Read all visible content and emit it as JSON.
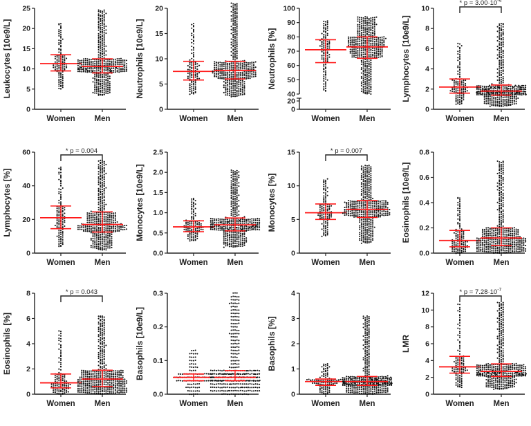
{
  "chart_data": [
    {
      "type": "scatter",
      "ylabel": "Leukocytes [10e9/L]",
      "ylim": [
        0,
        25
      ],
      "ticks": [
        0,
        5,
        10,
        15,
        20,
        25
      ],
      "categories": [
        "Women",
        "Men"
      ],
      "series": [
        {
          "name": "Women",
          "n": 120,
          "median": 11.3,
          "q1": 9.5,
          "q3": 13.5,
          "min": 5,
          "max": 21.2
        },
        {
          "name": "Men",
          "n": 450,
          "median": 10.6,
          "q1": 9,
          "q3": 12.5,
          "min": 3.5,
          "max": 24.5
        }
      ],
      "pvalue": null
    },
    {
      "type": "scatter",
      "ylabel": "Neutrophils [10e9/L]",
      "ylim": [
        0,
        20
      ],
      "ticks": [
        0,
        5,
        10,
        15,
        20
      ],
      "categories": [
        "Women",
        "Men"
      ],
      "series": [
        {
          "name": "Women",
          "n": 120,
          "median": 7.5,
          "q1": 5.8,
          "q3": 9.5,
          "min": 3,
          "max": 17
        },
        {
          "name": "Men",
          "n": 450,
          "median": 7.7,
          "q1": 6,
          "q3": 9.5,
          "min": 2.5,
          "max": 21
        }
      ],
      "pvalue": null
    },
    {
      "type": "scatter",
      "ylabel": "Neutrophils [%]",
      "ylim": [
        40,
        100
      ],
      "ticks": [
        40,
        50,
        60,
        70,
        80,
        90,
        100
      ],
      "broken_ticks": [
        0,
        20
      ],
      "categories": [
        "Women",
        "Men"
      ],
      "series": [
        {
          "name": "Women",
          "n": 120,
          "median": 71,
          "q1": 62,
          "q3": 78,
          "min": 42,
          "max": 91
        },
        {
          "name": "Men",
          "n": 450,
          "median": 73,
          "q1": 65,
          "q3": 80,
          "min": 40,
          "max": 94
        }
      ],
      "pvalue": null
    },
    {
      "type": "scatter",
      "ylabel": "Lymphocytes [10e9/L]",
      "ylim": [
        0,
        10
      ],
      "ticks": [
        0,
        2,
        4,
        6,
        8,
        10
      ],
      "categories": [
        "Women",
        "Men"
      ],
      "series": [
        {
          "name": "Women",
          "n": 120,
          "median": 2.2,
          "q1": 1.6,
          "q3": 3.0,
          "min": 0.5,
          "max": 6.5
        },
        {
          "name": "Men",
          "n": 450,
          "median": 1.8,
          "q1": 1.4,
          "q3": 2.4,
          "min": 0.3,
          "max": 8.5
        }
      ],
      "pvalue": {
        "text": "* p = 3.00·10",
        "exp": "-4"
      }
    },
    {
      "type": "scatter",
      "ylabel": "Lymphocytes [%]",
      "ylim": [
        0,
        60
      ],
      "ticks": [
        0,
        20,
        40,
        60
      ],
      "categories": [
        "Women",
        "Men"
      ],
      "series": [
        {
          "name": "Women",
          "n": 120,
          "median": 21,
          "q1": 14.5,
          "q3": 28,
          "min": 4,
          "max": 51
        },
        {
          "name": "Men",
          "n": 450,
          "median": 17,
          "q1": 12.5,
          "q3": 24.5,
          "min": 2,
          "max": 55
        }
      ],
      "pvalue": {
        "text": "* p = 0.004",
        "exp": ""
      }
    },
    {
      "type": "scatter",
      "ylabel": "Monocytes [10e9/L]",
      "ylim": [
        0,
        2.5
      ],
      "ticks": [
        0,
        0.5,
        1,
        1.5,
        2,
        2.5
      ],
      "tick_decimals": 1,
      "categories": [
        "Women",
        "Men"
      ],
      "series": [
        {
          "name": "Women",
          "n": 120,
          "median": 0.65,
          "q1": 0.53,
          "q3": 0.8,
          "min": 0.3,
          "max": 1.35
        },
        {
          "name": "Men",
          "n": 450,
          "median": 0.7,
          "q1": 0.55,
          "q3": 0.87,
          "min": 0.15,
          "max": 2.05
        }
      ],
      "pvalue": null
    },
    {
      "type": "scatter",
      "ylabel": "Monocytes [%]",
      "ylim": [
        0,
        15
      ],
      "ticks": [
        0,
        5,
        10,
        15
      ],
      "categories": [
        "Women",
        "Men"
      ],
      "series": [
        {
          "name": "Women",
          "n": 120,
          "median": 6,
          "q1": 5,
          "q3": 7.3,
          "min": 2.5,
          "max": 11
        },
        {
          "name": "Men",
          "n": 450,
          "median": 6.5,
          "q1": 5.3,
          "q3": 7.8,
          "min": 1.5,
          "max": 13
        }
      ],
      "pvalue": {
        "text": "* p = 0.007",
        "exp": ""
      }
    },
    {
      "type": "scatter",
      "ylabel": "Eosinophils [10e9/L]",
      "ylim": [
        0,
        0.8
      ],
      "ticks": [
        0,
        0.2,
        0.4,
        0.6,
        0.8
      ],
      "tick_decimals": 1,
      "categories": [
        "Women",
        "Men"
      ],
      "series": [
        {
          "name": "Women",
          "n": 120,
          "median": 0.1,
          "q1": 0.05,
          "q3": 0.18,
          "min": 0,
          "max": 0.44
        },
        {
          "name": "Men",
          "n": 450,
          "median": 0.12,
          "q1": 0.06,
          "q3": 0.2,
          "min": 0,
          "max": 0.73
        }
      ],
      "pvalue": null
    },
    {
      "type": "scatter",
      "ylabel": "Eosinophils [%]",
      "ylim": [
        0,
        8
      ],
      "ticks": [
        0,
        2,
        4,
        6,
        8
      ],
      "categories": [
        "Women",
        "Men"
      ],
      "series": [
        {
          "name": "Women",
          "n": 120,
          "median": 0.9,
          "q1": 0.5,
          "q3": 1.6,
          "min": 0,
          "max": 5
        },
        {
          "name": "Men",
          "n": 450,
          "median": 1.2,
          "q1": 0.6,
          "q3": 1.9,
          "min": 0,
          "max": 6.2
        }
      ],
      "pvalue": {
        "text": "* p = 0.043",
        "exp": ""
      }
    },
    {
      "type": "scatter",
      "ylabel": "Basophils [10e9/L]",
      "ylim": [
        0,
        0.3
      ],
      "ticks": [
        0,
        0.1,
        0.2,
        0.3
      ],
      "tick_decimals": 1,
      "discrete_step": 0.01,
      "categories": [
        "Women",
        "Men"
      ],
      "series": [
        {
          "name": "Women",
          "n": 120,
          "median": 0.05,
          "q1": 0.04,
          "q3": 0.06,
          "min": 0,
          "max": 0.13
        },
        {
          "name": "Men",
          "n": 450,
          "median": 0.05,
          "q1": 0.04,
          "q3": 0.07,
          "min": 0,
          "max": 0.3
        }
      ],
      "pvalue": null
    },
    {
      "type": "scatter",
      "ylabel": "Basophils [%]",
      "ylim": [
        0,
        4
      ],
      "ticks": [
        0,
        1,
        2,
        3,
        4
      ],
      "categories": [
        "Women",
        "Men"
      ],
      "series": [
        {
          "name": "Women",
          "n": 120,
          "median": 0.5,
          "q1": 0.35,
          "q3": 0.6,
          "min": 0,
          "max": 1.2
        },
        {
          "name": "Men",
          "n": 450,
          "median": 0.5,
          "q1": 0.35,
          "q3": 0.7,
          "min": 0,
          "max": 3.1
        }
      ],
      "pvalue": null
    },
    {
      "type": "scatter",
      "ylabel": "LMR",
      "ylim": [
        0,
        12
      ],
      "ticks": [
        0,
        2,
        4,
        6,
        8,
        10,
        12
      ],
      "categories": [
        "Women",
        "Men"
      ],
      "series": [
        {
          "name": "Women",
          "n": 120,
          "median": 3.25,
          "q1": 2.5,
          "q3": 4.5,
          "min": 0.8,
          "max": 10.7
        },
        {
          "name": "Men",
          "n": 450,
          "median": 2.7,
          "q1": 2.1,
          "q3": 3.6,
          "min": 0.6,
          "max": 10.9
        }
      ],
      "pvalue": {
        "text": "* p = 7.28·10",
        "exp": "-7"
      }
    }
  ],
  "colors": {
    "dots": "#111111",
    "summary": "#ff1a1a",
    "axis": "#222222"
  }
}
